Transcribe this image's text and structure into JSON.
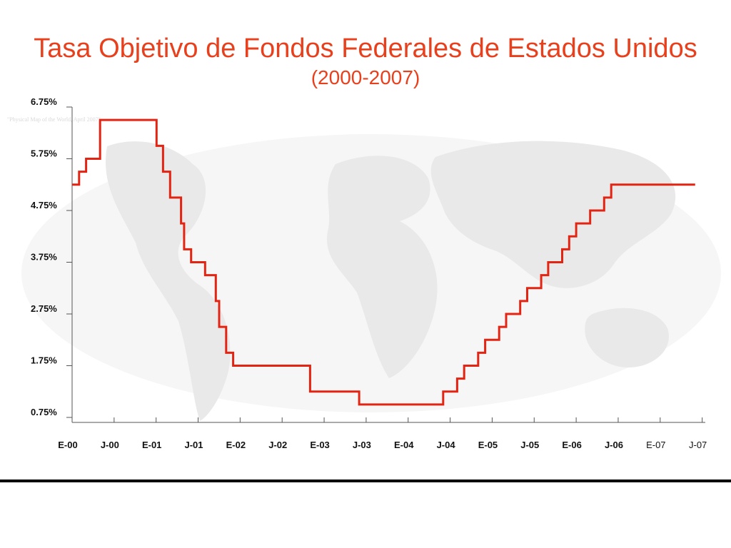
{
  "colors": {
    "title": "#e8401c",
    "line": "#e42412",
    "axis": "#555555",
    "map_land": "#e9e9e9",
    "map_ocean": "#f6f6f6"
  },
  "watermark": {
    "caption": "\"Physical Map of the World, April 2007\""
  },
  "chart_data": {
    "type": "line",
    "title": "Tasa Objetivo de Fondos Federales de Estados Unidos",
    "subtitle": "(2000-2007)",
    "xlabel": "",
    "ylabel": "",
    "ylim": [
      0.75,
      6.75
    ],
    "y_ticks": [
      "6.75%",
      "5.75%",
      "4.75%",
      "3.75%",
      "2.75%",
      "1.75%",
      "0.75%"
    ],
    "y_tick_values": [
      6.75,
      5.75,
      4.75,
      3.75,
      2.75,
      1.75,
      0.75
    ],
    "x_ticks": [
      "E-00",
      "J-00",
      "E-01",
      "J-01",
      "E-02",
      "J-02",
      "E-03",
      "J-03",
      "E-04",
      "J-04",
      "E-05",
      "J-05",
      "E-06",
      "J-06",
      "E-07",
      "J-07"
    ],
    "x_tick_values": [
      "2000-01",
      "2000-07",
      "2001-01",
      "2001-07",
      "2002-01",
      "2002-07",
      "2003-01",
      "2003-07",
      "2004-01",
      "2004-07",
      "2005-01",
      "2005-07",
      "2006-01",
      "2006-07",
      "2007-01",
      "2007-07"
    ],
    "grid": false,
    "legend": "none",
    "series": [
      {
        "step": "post",
        "x": [
          "2000-01",
          "2000-02",
          "2000-03",
          "2000-05",
          "2001-01-03",
          "2001-01-31",
          "2001-03",
          "2001-04-18",
          "2001-05",
          "2001-06",
          "2001-08",
          "2001-09-17",
          "2001-10",
          "2001-11",
          "2001-12",
          "2002-11",
          "2003-06",
          "2004-06",
          "2004-08",
          "2004-09",
          "2004-11",
          "2004-12",
          "2005-02",
          "2005-03",
          "2005-05",
          "2005-06",
          "2005-08",
          "2005-09",
          "2005-11",
          "2005-12",
          "2006-01",
          "2006-03",
          "2006-05",
          "2006-06",
          "2007-06"
        ],
        "values": [
          5.25,
          5.5,
          5.75,
          6.5,
          6.0,
          5.5,
          5.0,
          4.5,
          4.0,
          3.75,
          3.5,
          3.0,
          2.5,
          2.0,
          1.75,
          1.25,
          1.0,
          1.25,
          1.5,
          1.75,
          2.0,
          2.25,
          2.5,
          2.75,
          3.0,
          3.25,
          3.5,
          3.75,
          4.0,
          4.25,
          4.5,
          4.75,
          5.0,
          5.25,
          5.25
        ]
      }
    ]
  }
}
